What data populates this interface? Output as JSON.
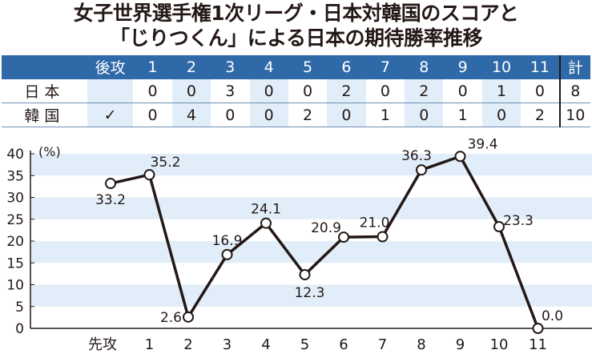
{
  "title_line1": "女子世界選手権1次リーグ・日本対韓国のスコアと",
  "title_line2": "「じりつくん」による日本の期待勝率推移",
  "score_table": {
    "header": [
      "後攻",
      "1",
      "2",
      "3",
      "4",
      "5",
      "6",
      "7",
      "8",
      "9",
      "10",
      "11",
      "計"
    ],
    "rows": [
      {
        "team": "日本",
        "hammer": "",
        "scores": [
          "0",
          "0",
          "3",
          "0",
          "0",
          "2",
          "0",
          "2",
          "0",
          "1",
          "0"
        ],
        "total": "8"
      },
      {
        "team": "韓国",
        "hammer": "✓",
        "scores": [
          "0",
          "4",
          "0",
          "0",
          "2",
          "0",
          "1",
          "0",
          "1",
          "0",
          "2"
        ],
        "total": "10"
      }
    ]
  },
  "chart_data": {
    "type": "line",
    "ylabel": "(%)",
    "categories": [
      "先攻",
      "1",
      "2",
      "3",
      "4",
      "5",
      "6",
      "7",
      "8",
      "9",
      "10",
      "11"
    ],
    "x": [
      "先攻",
      "1",
      "2",
      "3",
      "4",
      "5",
      "6",
      "7",
      "8",
      "9",
      "10",
      "11"
    ],
    "values": [
      33.2,
      35.2,
      2.6,
      16.9,
      24.1,
      12.3,
      20.9,
      21.0,
      36.3,
      39.4,
      23.3,
      0.0
    ],
    "value_labels": [
      "33.2",
      "35.2",
      "2.6",
      "16.9",
      "24.1",
      "12.3",
      "20.9",
      "21.0",
      "36.3",
      "39.4",
      "23.3",
      "0.0"
    ],
    "ylim": [
      0,
      40
    ],
    "yticks": [
      "0",
      "5",
      "10",
      "15",
      "20",
      "25",
      "30",
      "35",
      "40"
    ],
    "grid": "horizontal alternating bands",
    "colors": {
      "band": "#e1eef9",
      "line": "#231815",
      "marker_fill": "#ffffff",
      "header": "#2f69a8"
    }
  }
}
